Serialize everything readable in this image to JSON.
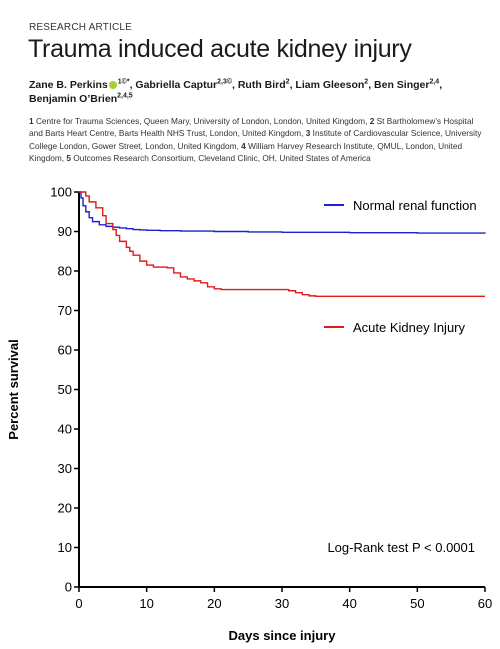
{
  "paper": {
    "kicker": "RESEARCH ARTICLE",
    "title": "Trauma induced acute kidney injury",
    "authors": [
      {
        "name": "Zane B. Perkins",
        "sup": "1©*",
        "orcid": true,
        "sep": ", "
      },
      {
        "name": "Gabriella Captur",
        "sup": "2,3©",
        "sep": ", "
      },
      {
        "name": "Ruth Bird",
        "sup": "2",
        "sep": ", "
      },
      {
        "name": "Liam Gleeson",
        "sup": "2",
        "sep": ", "
      },
      {
        "name": "Ben Singer",
        "sup": "2,4",
        "sep": ", "
      },
      {
        "name": "Benjamin O’Brien",
        "sup": "2,4,5",
        "sep": ""
      }
    ],
    "affiliations": [
      {
        "num": "1",
        "text": "Centre for Trauma Sciences, Queen Mary, University of London, London, United Kingdom, "
      },
      {
        "num": "2",
        "text": "St Bartholomew’s Hospital and Barts Heart Centre, Barts Health NHS Trust, London, United Kingdom, "
      },
      {
        "num": "3",
        "text": "Institute of Cardiovascular Science, University College London, Gower Street, London, United Kingdom, "
      },
      {
        "num": "4",
        "text": "William Harvey Research Institute, QMUL, London, United Kingdom, "
      },
      {
        "num": "5",
        "text": "Outcomes Research Consortium, Cleveland Clinic, OH, United States of America"
      }
    ]
  },
  "chart_data": {
    "type": "line",
    "title": "",
    "xlabel": "Days since injury",
    "ylabel": "Percent survival",
    "xlim": [
      0,
      60
    ],
    "ylim": [
      0,
      100
    ],
    "xticks": [
      0,
      10,
      20,
      30,
      40,
      50,
      60
    ],
    "yticks": [
      0,
      10,
      20,
      30,
      40,
      50,
      60,
      70,
      80,
      90,
      100
    ],
    "grid": false,
    "legend_placement": "right",
    "annotation": "Log-Rank test P < 0.0001",
    "series": [
      {
        "name": "Normal renal function",
        "color": "#1f1fd6",
        "step": true,
        "points": [
          [
            0,
            100
          ],
          [
            0.3,
            98.5
          ],
          [
            0.6,
            96.5
          ],
          [
            1,
            95
          ],
          [
            1.5,
            93.5
          ],
          [
            2,
            92.5
          ],
          [
            3,
            91.7
          ],
          [
            4,
            91.3
          ],
          [
            5,
            91.1
          ],
          [
            6,
            90.9
          ],
          [
            7,
            90.7
          ],
          [
            8,
            90.5
          ],
          [
            9,
            90.4
          ],
          [
            10,
            90.3
          ],
          [
            12,
            90.2
          ],
          [
            15,
            90.1
          ],
          [
            20,
            90.0
          ],
          [
            25,
            89.9
          ],
          [
            30,
            89.8
          ],
          [
            40,
            89.7
          ],
          [
            50,
            89.6
          ],
          [
            60,
            89.5
          ]
        ]
      },
      {
        "name": "Acute Kidney Injury",
        "color": "#e01b1b",
        "step": true,
        "points": [
          [
            0,
            100
          ],
          [
            1,
            99
          ],
          [
            1.5,
            97.5
          ],
          [
            2.5,
            96
          ],
          [
            3.5,
            94
          ],
          [
            4,
            92
          ],
          [
            5,
            90.5
          ],
          [
            5.5,
            89
          ],
          [
            6,
            87.5
          ],
          [
            7,
            86
          ],
          [
            7.5,
            85
          ],
          [
            8,
            84
          ],
          [
            9,
            82.5
          ],
          [
            10,
            81.5
          ],
          [
            11,
            81
          ],
          [
            12,
            81
          ],
          [
            13,
            80.8
          ],
          [
            14,
            79.5
          ],
          [
            15,
            78.5
          ],
          [
            16,
            78
          ],
          [
            17,
            77.5
          ],
          [
            18,
            77
          ],
          [
            19,
            76
          ],
          [
            20,
            75.5
          ],
          [
            21,
            75.3
          ],
          [
            25,
            75.3
          ],
          [
            31,
            75
          ],
          [
            32,
            74.5
          ],
          [
            33,
            74
          ],
          [
            34,
            73.7
          ],
          [
            35,
            73.6
          ],
          [
            40,
            73.6
          ],
          [
            50,
            73.6
          ],
          [
            60,
            73.6
          ]
        ]
      }
    ]
  }
}
